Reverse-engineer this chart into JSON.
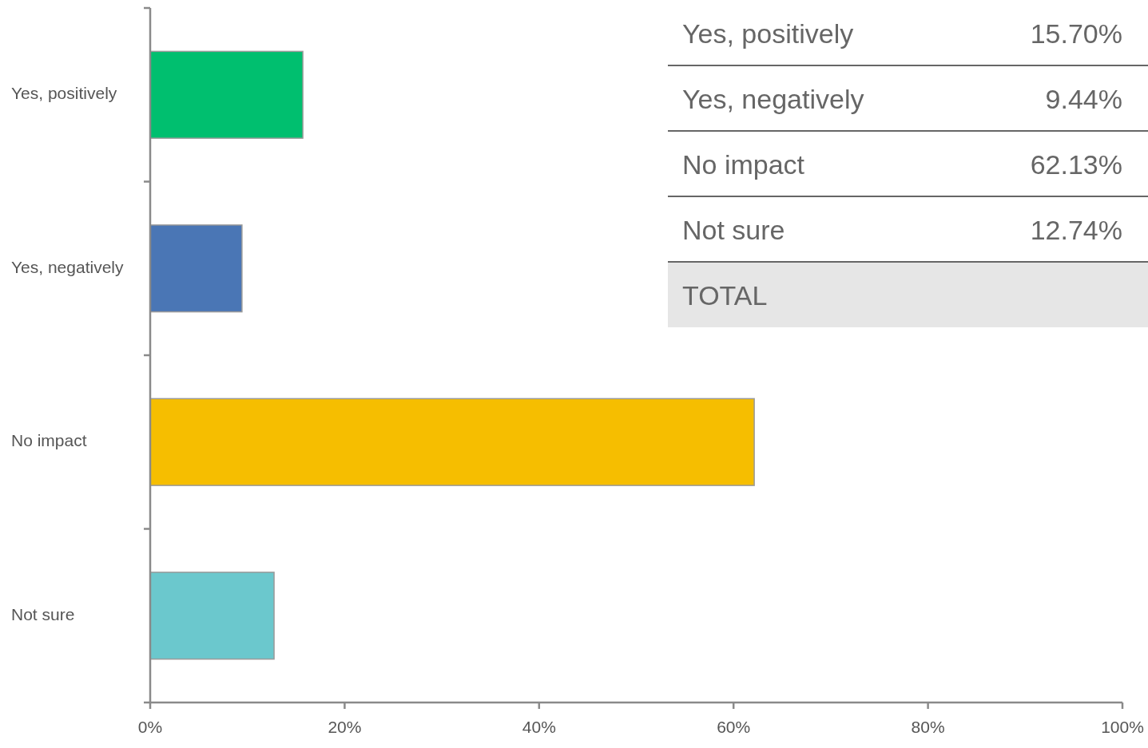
{
  "chart_data": {
    "type": "bar",
    "orientation": "horizontal",
    "categories": [
      "Yes, positively",
      "Yes, negatively",
      "No impact",
      "Not sure"
    ],
    "values": [
      15.7,
      9.44,
      62.13,
      12.74
    ],
    "colors": [
      "#00bf6f",
      "#4a76b5",
      "#f6be00",
      "#6bc8cd"
    ],
    "annotations": [
      "15.70%",
      "9.44%",
      "62.13%",
      "12.74%",
      "TOTAL"
    ],
    "xlim": [
      0,
      100
    ],
    "xticks": [
      {
        "value": 0,
        "label": "0%"
      },
      {
        "value": 20,
        "label": "20%"
      },
      {
        "value": 40,
        "label": "40%"
      },
      {
        "value": 60,
        "label": "60%"
      },
      {
        "value": 80,
        "label": "80%"
      },
      {
        "value": 100,
        "label": "100%"
      }
    ]
  }
}
